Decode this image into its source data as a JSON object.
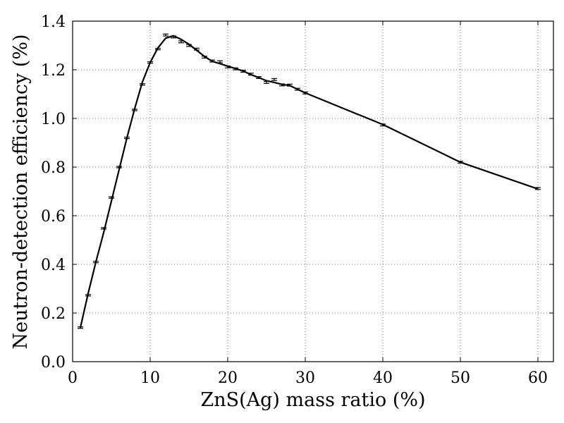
{
  "chart_data": {
    "type": "line",
    "title": "",
    "xlabel": "ZnS(Ag) mass ratio (%)",
    "ylabel": "Neutron-detection efficiency (%)",
    "xlim": [
      0,
      62
    ],
    "ylim": [
      0.0,
      1.4
    ],
    "xticks": [
      0,
      10,
      20,
      30,
      40,
      50,
      60
    ],
    "yticks": [
      0.0,
      0.2,
      0.4,
      0.6,
      0.8,
      1.0,
      1.2,
      1.4
    ],
    "x_tick_labels": [
      "0",
      "10",
      "20",
      "30",
      "40",
      "50",
      "60"
    ],
    "y_tick_labels": [
      "0.0",
      "0.2",
      "0.4",
      "0.6",
      "0.8",
      "1.0",
      "1.2",
      "1.4"
    ],
    "grid": true,
    "legend": "none",
    "line_color": "#000000",
    "curve": {
      "x": [
        1,
        2,
        3,
        4,
        5,
        6,
        7,
        8,
        9,
        10,
        11,
        12,
        13,
        14,
        15,
        16,
        17,
        18,
        19,
        20,
        21,
        22,
        23,
        24,
        25,
        26,
        27,
        28,
        29,
        30,
        40,
        50,
        60
      ],
      "y": [
        0.14,
        0.28,
        0.41,
        0.53,
        0.66,
        0.79,
        0.92,
        1.04,
        1.15,
        1.23,
        1.29,
        1.33,
        1.34,
        1.325,
        1.305,
        1.28,
        1.255,
        1.235,
        1.225,
        1.215,
        1.205,
        1.195,
        1.18,
        1.168,
        1.155,
        1.148,
        1.14,
        1.135,
        1.12,
        1.105,
        0.975,
        0.82,
        0.71
      ]
    },
    "series": [
      {
        "x": [
          1,
          2,
          3,
          4,
          5,
          6,
          7,
          8,
          9,
          10,
          11,
          12,
          13,
          14,
          15,
          16,
          17,
          18,
          19,
          20,
          21,
          22,
          23,
          24,
          25,
          26,
          27,
          28,
          29,
          30,
          40,
          50,
          60
        ],
        "y": [
          0.14,
          0.273,
          0.41,
          0.548,
          0.675,
          0.8,
          0.92,
          1.035,
          1.14,
          1.23,
          1.285,
          1.343,
          1.335,
          1.315,
          1.3,
          1.285,
          1.252,
          1.236,
          1.233,
          1.212,
          1.204,
          1.194,
          1.182,
          1.168,
          1.148,
          1.16,
          1.138,
          1.137,
          1.12,
          1.105,
          0.973,
          0.82,
          0.712
        ],
        "err": [
          0.003,
          0.003,
          0.003,
          0.003,
          0.003,
          0.003,
          0.003,
          0.003,
          0.003,
          0.003,
          0.003,
          0.004,
          0.004,
          0.004,
          0.004,
          0.004,
          0.004,
          0.004,
          0.004,
          0.004,
          0.004,
          0.004,
          0.004,
          0.004,
          0.004,
          0.004,
          0.004,
          0.004,
          0.004,
          0.004,
          0.004,
          0.004,
          0.004
        ]
      }
    ]
  }
}
